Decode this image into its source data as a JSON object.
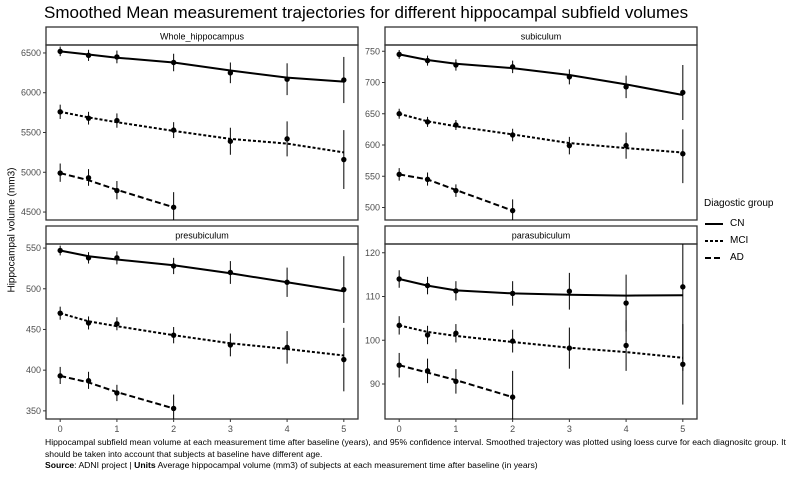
{
  "title": "Smoothed Mean measurement trajectories for different hippocampal subfield volumes",
  "ylabel": "Hippocampal volume (mm3)",
  "legend": {
    "title": "Diagostic group",
    "items": [
      {
        "label": "CN",
        "dash": "solid"
      },
      {
        "label": "MCI",
        "dash": "dotted"
      },
      {
        "label": "AD",
        "dash": "dashed"
      }
    ]
  },
  "caption": {
    "text": "Hippocampal subfield mean volume at each measurement time after baseline (years), and 95% confidence interval. Smoothed trajectory was plotted using loess curve for each diagnositc group. It should be taken into account that subjects at baseline have different age.",
    "source_label": "Source",
    "source_text": ": ADNI project | ",
    "units_label": "Units",
    "units_text": " Average hippocampal volume (mm3) of subjects at each measurement time after baseline (in years)"
  },
  "colors": {
    "line": "#000000",
    "panel_border": "#333333",
    "strip_fill": "#ffffff",
    "tick_text": "#4d4d4d"
  },
  "chart_data": {
    "type": "line",
    "xlabel": "",
    "x_ticks": [
      0,
      1,
      2,
      3,
      4,
      5
    ],
    "panels": [
      {
        "name": "Whole_hippocampus",
        "ylim": [
          4400,
          6600
        ],
        "y_ticks": [
          4500,
          5000,
          5500,
          6000,
          6500
        ],
        "series": [
          {
            "name": "CN",
            "x": [
              0,
              0.5,
              1,
              2,
              3,
              4,
              5
            ],
            "y": [
              6520,
              6470,
              6450,
              6380,
              6250,
              6170,
              6160
            ],
            "lo": [
              6460,
              6400,
              6370,
              6270,
              6120,
              5970,
              5870
            ],
            "hi": [
              6580,
              6540,
              6530,
              6490,
              6380,
              6370,
              6450
            ],
            "smooth": [
              6520,
              6480,
              6440,
              6380,
              6280,
              6190,
              6140
            ]
          },
          {
            "name": "MCI",
            "x": [
              0,
              0.5,
              1,
              2,
              3,
              4,
              5
            ],
            "y": [
              5760,
              5680,
              5650,
              5530,
              5390,
              5420,
              5160
            ],
            "lo": [
              5670,
              5600,
              5560,
              5430,
              5220,
              5200,
              4790
            ],
            "hi": [
              5850,
              5760,
              5740,
              5630,
              5560,
              5640,
              5530
            ],
            "smooth": [
              5760,
              5690,
              5630,
              5520,
              5420,
              5360,
              5250
            ]
          },
          {
            "name": "AD",
            "x": [
              0,
              0.5,
              1,
              2
            ],
            "y": [
              4990,
              4930,
              4770,
              4560
            ],
            "lo": [
              4880,
              4830,
              4660,
              4400
            ],
            "hi": [
              5110,
              5040,
              4890,
              4750
            ],
            "smooth": [
              4990,
              4900,
              4780,
              4560
            ]
          }
        ]
      },
      {
        "name": "subiculum",
        "ylim": [
          480,
          760
        ],
        "y_ticks": [
          500,
          550,
          600,
          650,
          700,
          750
        ],
        "series": [
          {
            "name": "CN",
            "x": [
              0,
              0.5,
              1,
              2,
              3,
              4,
              5
            ],
            "y": [
              745,
              735,
              728,
              725,
              709,
              693,
              684
            ],
            "lo": [
              738,
              727,
              719,
              715,
              697,
              675,
              640
            ],
            "hi": [
              752,
              743,
              737,
              735,
              721,
              711,
              728
            ],
            "smooth": [
              745,
              736,
              730,
              723,
              712,
              697,
              680
            ]
          },
          {
            "name": "MCI",
            "x": [
              0,
              0.5,
              1,
              2,
              3,
              4,
              5
            ],
            "y": [
              650,
              637,
              632,
              616,
              599,
              599,
              586
            ],
            "lo": [
              642,
              629,
              624,
              606,
              585,
              578,
              539
            ],
            "hi": [
              658,
              645,
              640,
              626,
              613,
              620,
              625
            ],
            "smooth": [
              650,
              638,
              630,
              617,
              603,
              595,
              588
            ]
          },
          {
            "name": "AD",
            "x": [
              0,
              0.5,
              1,
              2
            ],
            "y": [
              553,
              545,
              527,
              495
            ],
            "lo": [
              543,
              535,
              517,
              477
            ],
            "hi": [
              563,
              556,
              537,
              513
            ],
            "smooth": [
              553,
              545,
              528,
              495
            ]
          }
        ]
      },
      {
        "name": "presubiculum",
        "ylim": [
          340,
          555
        ],
        "y_ticks": [
          350,
          400,
          450,
          500,
          550
        ],
        "series": [
          {
            "name": "CN",
            "x": [
              0,
              0.5,
              1,
              2,
              3,
              4,
              5
            ],
            "y": [
              547,
              538,
              538,
              528,
              520,
              508,
              499
            ],
            "lo": [
              541,
              531,
              530,
              518,
              506,
              490,
              458
            ],
            "hi": [
              553,
              545,
              546,
              538,
              534,
              526,
              540
            ],
            "smooth": [
              547,
              540,
              536,
              529,
              519,
              508,
              497
            ]
          },
          {
            "name": "MCI",
            "x": [
              0,
              0.5,
              1,
              2,
              3,
              4,
              5
            ],
            "y": [
              470,
              458,
              457,
              443,
              431,
              428,
              413
            ],
            "lo": [
              462,
              450,
              449,
              433,
              417,
              408,
              374
            ],
            "hi": [
              478,
              466,
              465,
              453,
              445,
              448,
              452
            ],
            "smooth": [
              470,
              460,
              454,
              443,
              433,
              426,
              418
            ]
          },
          {
            "name": "AD",
            "x": [
              0,
              0.5,
              1,
              2
            ],
            "y": [
              393,
              387,
              372,
              353
            ],
            "lo": [
              383,
              377,
              362,
              336
            ],
            "hi": [
              404,
              398,
              382,
              370
            ],
            "smooth": [
              393,
              385,
              373,
              353
            ]
          }
        ]
      },
      {
        "name": "parasubiculum",
        "ylim": [
          82,
          122
        ],
        "y_ticks": [
          90,
          100,
          110,
          120
        ],
        "series": [
          {
            "name": "CN",
            "x": [
              0,
              0.5,
              1,
              2,
              3,
              4,
              5
            ],
            "y": [
              114,
              112.5,
              111.3,
              110.7,
              111.2,
              108.5,
              112.2
            ],
            "lo": [
              112,
              110.5,
              109.1,
              107.9,
              107.0,
              102.0,
              93
            ],
            "hi": [
              116,
              114.5,
              113.5,
              113.5,
              115.4,
              115.0,
              131
            ],
            "smooth": [
              114,
              112.5,
              111.4,
              110.7,
              110.4,
              110.2,
              110.3
            ]
          },
          {
            "name": "MCI",
            "x": [
              0,
              0.5,
              1,
              2,
              3,
              4,
              5
            ],
            "y": [
              103.4,
              101.2,
              101.6,
              99.8,
              98.2,
              98.8,
              94.5
            ],
            "lo": [
              101.3,
              99.1,
              99.5,
              97.2,
              93.5,
              93.0,
              85.3
            ],
            "hi": [
              105.5,
              103.3,
              103.7,
              102.4,
              102.9,
              104.6,
              103.7
            ],
            "smooth": [
              103.4,
              101.9,
              101.0,
              99.6,
              98.3,
              97.3,
              96.0
            ]
          },
          {
            "name": "AD",
            "x": [
              0,
              0.5,
              1,
              2
            ],
            "y": [
              94.3,
              93.0,
              90.6,
              87.0
            ],
            "lo": [
              91.5,
              90.2,
              87.8,
              81.0
            ],
            "hi": [
              97.1,
              95.8,
              93.4,
              93.0
            ],
            "smooth": [
              94.3,
              92.6,
              90.9,
              87.0
            ]
          }
        ]
      }
    ]
  }
}
